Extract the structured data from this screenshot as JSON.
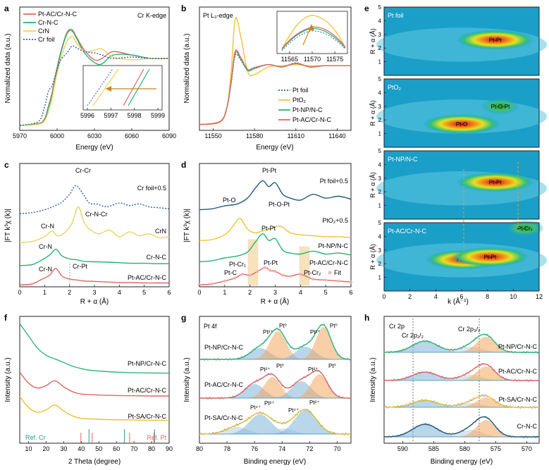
{
  "colors": {
    "ptac": "#e06666",
    "crnc": "#22b573",
    "crn": "#f0d060",
    "foil": "#2e5fa8",
    "pto2": "#f2c232",
    "ptnp": "#22b573",
    "axis": "#222222",
    "orange": "#e8862a"
  },
  "chart_data": [
    {
      "id": "a",
      "type": "line",
      "panel_label": "a",
      "title": "Cr K-edge",
      "xlabel": "Energy (eV)",
      "ylabel": "Normalized data (a.u.)",
      "xlim": [
        5970,
        6090
      ],
      "xticks": [
        "5970",
        "6000",
        "6030",
        "6060",
        "6090"
      ],
      "legend": [
        "Pt-AC/Cr-N-C",
        "Cr-N-C",
        "CrN",
        "Cr foil"
      ],
      "inset": {
        "xticks": [
          "5996",
          "5997",
          "5998",
          "5999"
        ]
      },
      "series": [
        {
          "name": "Pt-AC/Cr-N-C",
          "x": [
            5970,
            5985,
            5990,
            5993,
            5996,
            5999,
            6003,
            6008,
            6012,
            6016,
            6022,
            6030,
            6036,
            6045,
            6060,
            6075,
            6090
          ],
          "y": [
            0.02,
            0.05,
            0.12,
            0.3,
            0.5,
            0.78,
            1.1,
            1.38,
            1.42,
            1.3,
            1.12,
            0.98,
            1.0,
            1.1,
            1.05,
            1.0,
            1.0
          ]
        },
        {
          "name": "Cr-N-C",
          "x": [
            5970,
            5985,
            5990,
            5993,
            5996,
            5999,
            6003,
            6008,
            6012,
            6016,
            6022,
            6030,
            6036,
            6045,
            6060,
            6075,
            6090
          ],
          "y": [
            0.02,
            0.05,
            0.1,
            0.28,
            0.46,
            0.74,
            1.08,
            1.36,
            1.4,
            1.28,
            1.08,
            0.94,
            0.92,
            1.05,
            1.05,
            1.0,
            1.0
          ]
        },
        {
          "name": "CrN",
          "x": [
            5970,
            5985,
            5990,
            5993,
            5996,
            5999,
            6003,
            6008,
            6012,
            6016,
            6022,
            6030,
            6036,
            6045,
            6060,
            6075,
            6090
          ],
          "y": [
            0.02,
            0.04,
            0.09,
            0.22,
            0.42,
            0.7,
            1.0,
            1.25,
            1.32,
            1.22,
            1.1,
            1.12,
            1.14,
            1.02,
            0.98,
            1.0,
            1.0
          ]
        },
        {
          "name": "Cr foil",
          "x": [
            5970,
            5985,
            5990,
            5993,
            5996,
            5999,
            6003,
            6008,
            6012,
            6016,
            6022,
            6030,
            6036,
            6045,
            6060,
            6075,
            6090
          ],
          "y": [
            0.02,
            0.08,
            0.3,
            0.52,
            0.6,
            0.78,
            0.98,
            1.08,
            1.18,
            1.15,
            1.1,
            1.08,
            1.05,
            1.0,
            1.02,
            1.0,
            1.0
          ]
        }
      ]
    },
    {
      "id": "b",
      "type": "line",
      "panel_label": "b",
      "title": "Pt L₃-edge",
      "xlabel": "Energy (eV)",
      "ylabel": "Normalized data (a.u.)",
      "xlim": [
        11540,
        11650
      ],
      "xticks": [
        "11550",
        "11580",
        "11610",
        "11640"
      ],
      "legend": [
        "Pt foil",
        "PtO₂",
        "Pt-NP/N-C",
        "Pt-AC/Cr-N-C"
      ],
      "inset": {
        "xticks": [
          "11565",
          "11570",
          "11575"
        ]
      },
      "series": [
        {
          "name": "Pt foil",
          "x": [
            11540,
            11555,
            11560,
            11563,
            11566,
            11570,
            11575,
            11580,
            11590,
            11600,
            11610,
            11620,
            11630,
            11640,
            11650
          ],
          "y": [
            0.0,
            0.05,
            0.3,
            0.7,
            1.18,
            1.1,
            0.92,
            0.95,
            1.02,
            0.98,
            1.05,
            0.98,
            1.0,
            1.0,
            1.0
          ]
        },
        {
          "name": "PtO₂",
          "x": [
            11540,
            11555,
            11560,
            11563,
            11566,
            11570,
            11575,
            11580,
            11590,
            11600,
            11610,
            11620,
            11630,
            11640,
            11650
          ],
          "y": [
            0.0,
            0.04,
            0.3,
            0.9,
            1.8,
            1.5,
            0.9,
            0.85,
            0.98,
            1.0,
            1.02,
            1.0,
            1.0,
            1.0,
            1.0
          ]
        },
        {
          "name": "Pt-NP/N-C",
          "x": [
            11540,
            11555,
            11560,
            11563,
            11566,
            11570,
            11575,
            11580,
            11590,
            11600,
            11610,
            11620,
            11630,
            11640,
            11650
          ],
          "y": [
            0.0,
            0.05,
            0.3,
            0.72,
            1.22,
            1.12,
            0.92,
            0.96,
            1.02,
            0.98,
            1.04,
            0.98,
            1.0,
            1.0,
            1.0
          ]
        },
        {
          "name": "Pt-AC/Cr-N-C",
          "x": [
            11540,
            11555,
            11560,
            11563,
            11566,
            11570,
            11575,
            11580,
            11590,
            11600,
            11610,
            11620,
            11630,
            11640,
            11650
          ],
          "y": [
            0.0,
            0.05,
            0.3,
            0.74,
            1.25,
            1.14,
            0.94,
            0.97,
            1.02,
            0.98,
            1.04,
            0.98,
            1.0,
            1.0,
            1.0
          ]
        }
      ]
    },
    {
      "id": "c",
      "type": "line",
      "panel_label": "c",
      "xlabel": "R + α (Å)",
      "ylabel": "|FT k³χ (k)|",
      "xlim": [
        0,
        6
      ],
      "xticks": [
        "0",
        "1",
        "2",
        "3",
        "4",
        "5",
        "6"
      ],
      "series": [
        {
          "name": "Cr foil+0.5",
          "x": [
            0,
            0.5,
            1.0,
            1.4,
            1.7,
            2.0,
            2.25,
            2.5,
            2.8,
            3.1,
            3.5,
            4.0,
            4.4,
            4.8,
            5.2,
            5.6,
            6.0
          ],
          "y": [
            0.0,
            0.05,
            0.2,
            0.4,
            0.6,
            1.0,
            1.45,
            1.1,
            0.55,
            0.5,
            0.35,
            0.55,
            0.42,
            0.5,
            0.35,
            0.3,
            0.25
          ]
        },
        {
          "name": "CrN",
          "x": [
            0,
            0.5,
            1.0,
            1.3,
            1.5,
            1.8,
            2.1,
            2.35,
            2.6,
            2.9,
            3.2,
            3.6,
            4.0,
            4.4,
            4.8,
            5.2,
            5.6,
            6.0
          ],
          "y": [
            0.0,
            0.05,
            0.3,
            0.6,
            0.35,
            0.5,
            1.0,
            1.85,
            1.0,
            0.6,
            0.45,
            0.65,
            0.3,
            0.55,
            0.35,
            0.45,
            0.25,
            0.3
          ]
        },
        {
          "name": "Cr-N-C",
          "x": [
            0,
            0.5,
            0.9,
            1.2,
            1.45,
            1.7,
            2.0,
            2.3,
            2.6,
            3.0,
            3.5,
            4.0,
            4.5,
            5.0,
            5.5,
            6.0
          ],
          "y": [
            0.0,
            0.05,
            0.3,
            0.55,
            0.85,
            0.5,
            0.35,
            0.3,
            0.22,
            0.2,
            0.18,
            0.15,
            0.12,
            0.12,
            0.1,
            0.1
          ]
        },
        {
          "name": "Pt-AC/Cr-N-C",
          "x": [
            0,
            0.5,
            0.9,
            1.2,
            1.45,
            1.7,
            2.0,
            2.3,
            2.6,
            3.0,
            3.5,
            4.0,
            4.5,
            5.0,
            5.5,
            6.0
          ],
          "y": [
            0.0,
            0.05,
            0.3,
            0.5,
            0.85,
            0.45,
            0.3,
            0.25,
            0.2,
            0.18,
            0.15,
            0.12,
            0.12,
            0.1,
            0.1,
            0.1
          ]
        }
      ],
      "labels": [
        "Cr foil+0.5",
        "CrN",
        "Cr-N-C",
        "Pt-AC/Cr-N-C",
        "Cr-Cr",
        "Cr-N-Cr",
        "Cr-N",
        "Cr-N",
        "Cr-N",
        "Cr-Pt"
      ]
    },
    {
      "id": "d",
      "type": "line",
      "panel_label": "d",
      "xlabel": "R + α (Å)",
      "ylabel": "|FT k³χ (k)|",
      "xlim": [
        0,
        6
      ],
      "xticks": [
        "0",
        "1",
        "2",
        "3",
        "4",
        "5",
        "6"
      ],
      "series": [
        {
          "name": "Pt foil+0.5",
          "x": [
            0,
            0.5,
            1.0,
            1.5,
            1.9,
            2.2,
            2.5,
            2.75,
            3.0,
            3.3,
            3.6,
            4.0,
            4.5,
            5.0,
            5.5,
            6.0
          ],
          "y": [
            0.0,
            0.05,
            0.2,
            0.3,
            0.6,
            1.1,
            1.5,
            1.2,
            1.4,
            0.8,
            0.6,
            0.5,
            0.8,
            0.6,
            0.7,
            0.55
          ]
        },
        {
          "name": "PtO₂+0.5",
          "x": [
            0,
            0.5,
            1.0,
            1.3,
            1.6,
            1.9,
            2.2,
            2.5,
            2.8,
            3.2,
            3.6,
            4.0,
            4.5,
            5.0,
            5.5,
            6.0
          ],
          "y": [
            0.0,
            0.05,
            0.3,
            0.7,
            1.15,
            0.6,
            0.4,
            0.5,
            0.6,
            0.75,
            0.4,
            0.3,
            0.25,
            0.2,
            0.2,
            0.15
          ]
        },
        {
          "name": "Pt-NP/N-C",
          "x": [
            0,
            0.5,
            1.0,
            1.5,
            1.9,
            2.2,
            2.5,
            2.75,
            3.0,
            3.3,
            3.6,
            4.0,
            4.5,
            5.0,
            5.5,
            6.0
          ],
          "y": [
            0.0,
            0.05,
            0.2,
            0.3,
            0.5,
            1.0,
            1.45,
            1.1,
            1.2,
            0.6,
            0.45,
            0.4,
            0.55,
            0.4,
            0.45,
            0.35
          ]
        },
        {
          "name": "Pt-AC/Cr-N-C",
          "x": [
            0,
            0.5,
            1.0,
            1.4,
            1.7,
            2.0,
            2.3,
            2.6,
            2.8,
            3.0,
            3.3,
            3.6,
            4.0,
            4.5,
            5.0,
            5.5,
            6.0
          ],
          "y": [
            0.0,
            0.05,
            0.2,
            0.35,
            0.55,
            0.5,
            0.7,
            0.9,
            0.75,
            0.7,
            0.5,
            0.45,
            0.55,
            0.3,
            0.25,
            0.2,
            0.15
          ]
        }
      ],
      "labels": [
        "Pt foil+0.5",
        "PtO₂+0.5",
        "Pt-NP/N-C",
        "Pt-AC/Cr-N-C",
        "Pt-Pt",
        "Pt-O",
        "Pt-O-Pt",
        "Pt-Pt",
        "Pt-Pt",
        "Pt-Cr₁",
        "Pt-C",
        "Pt-Cr₂",
        "Fit"
      ]
    },
    {
      "id": "e",
      "type": "heatmap",
      "panel_label": "e",
      "xlabel": "k (Å⁻¹)",
      "ylabel": "R + α (Å)",
      "xlim": [
        0,
        12
      ],
      "ylim": [
        0,
        5
      ],
      "xticks": [
        "0",
        "2",
        "4",
        "6",
        "8",
        "10",
        "12"
      ],
      "yticks": [
        "1",
        "2",
        "3",
        "4",
        "5"
      ],
      "subpanels": [
        {
          "name": "Pt foil",
          "features": [
            {
              "label": "Pt-Pt",
              "k": 8.6,
              "R": 2.6
            }
          ]
        },
        {
          "name": "PtO₂",
          "features": [
            {
              "label": "Pt-O-Pt",
              "k": 9.0,
              "R": 3.0
            },
            {
              "label": "Pt-O",
              "k": 6.0,
              "R": 1.7
            }
          ]
        },
        {
          "name": "Pt-NP/N-C",
          "features": [
            {
              "label": "Pt-Pt",
              "k": 8.6,
              "R": 2.7
            }
          ]
        },
        {
          "name": "Pt-AC/Cr-N-C",
          "features": [
            {
              "label": "Pt-Cr₂",
              "k": 10.9,
              "R": 4.6
            },
            {
              "label": "Pt-Cr₁",
              "k": 6.2,
              "R": 2.3
            },
            {
              "label": "Pt-Pt",
              "k": 8.2,
              "R": 2.5
            }
          ]
        }
      ]
    },
    {
      "id": "f",
      "type": "line",
      "panel_label": "f",
      "xlabel": "2 Theta (degree)",
      "ylabel": "Intensity (a.u.)",
      "xlim": [
        5,
        90
      ],
      "xticks": [
        "10",
        "20",
        "30",
        "40",
        "50",
        "60",
        "70",
        "80",
        "90"
      ],
      "ref_labels": [
        "Ref. Cr",
        "Ref. Pt"
      ],
      "series": [
        {
          "name": "Pt-NP/Cr-N-C",
          "x": [
            5,
            10,
            15,
            20,
            25,
            30,
            35,
            40,
            45,
            50,
            60,
            70,
            80,
            90
          ],
          "y": [
            3.9,
            3.4,
            2.9,
            2.6,
            2.45,
            2.3,
            2.15,
            2.05,
            1.98,
            1.95,
            1.9,
            1.88,
            1.87,
            1.86
          ]
        },
        {
          "name": "Pt-AC/Cr-N-C",
          "x": [
            5,
            10,
            15,
            20,
            25,
            30,
            35,
            40,
            45,
            50,
            60,
            70,
            80,
            90
          ],
          "y": [
            1.9,
            1.45,
            1.25,
            1.35,
            1.55,
            1.3,
            1.1,
            1.0,
            0.98,
            0.96,
            0.94,
            0.93,
            0.92,
            0.92
          ]
        },
        {
          "name": "Pt-SA/Cr-N-C",
          "x": [
            5,
            10,
            15,
            20,
            25,
            30,
            35,
            40,
            45,
            50,
            60,
            70,
            80,
            90
          ],
          "y": [
            0.9,
            0.45,
            0.25,
            0.35,
            0.55,
            0.3,
            0.1,
            0.0,
            -0.02,
            -0.04,
            -0.06,
            -0.07,
            -0.08,
            -0.08
          ]
        }
      ]
    },
    {
      "id": "g",
      "type": "line",
      "panel_label": "g",
      "title": "Pt 4f",
      "xlabel": "Binding energy (eV)",
      "ylabel": "Intensity (a.u.)",
      "xlim": [
        80,
        69
      ],
      "xticks": [
        "80",
        "78",
        "76",
        "74",
        "72",
        "70"
      ],
      "series": [
        {
          "name": "Pt-NP/Cr-N-C"
        },
        {
          "name": "Pt-AC/Cr-N-C"
        },
        {
          "name": "Pt-SA/Cr-N-C"
        }
      ],
      "labels": [
        "Pt²⁺",
        "Pt⁰",
        "Pt²⁺",
        "Pt⁰",
        "Pt²⁺",
        "Pt⁰",
        "Pt²⁺",
        "Pt⁰",
        "Pt⁴⁺",
        "Pt²⁺",
        "Pt⁴⁺",
        "Pt²⁺"
      ]
    },
    {
      "id": "h",
      "type": "line",
      "panel_label": "h",
      "title": "Cr 2p",
      "xlabel": "Binding energy (eV)",
      "ylabel": "Intensity (a.u.)",
      "xlim": [
        593,
        568
      ],
      "xticks": [
        "590",
        "585",
        "580",
        "575",
        "570"
      ],
      "series": [
        {
          "name": "Pt-NP/Cr-N-C"
        },
        {
          "name": "Pt-AC/Cr-N-C"
        },
        {
          "name": "Pt-SA/Cr-N-C"
        },
        {
          "name": "Cr-N-C"
        }
      ],
      "labels": [
        "Cr 2p₁/₂",
        "Cr 2p₃/₂"
      ]
    }
  ]
}
